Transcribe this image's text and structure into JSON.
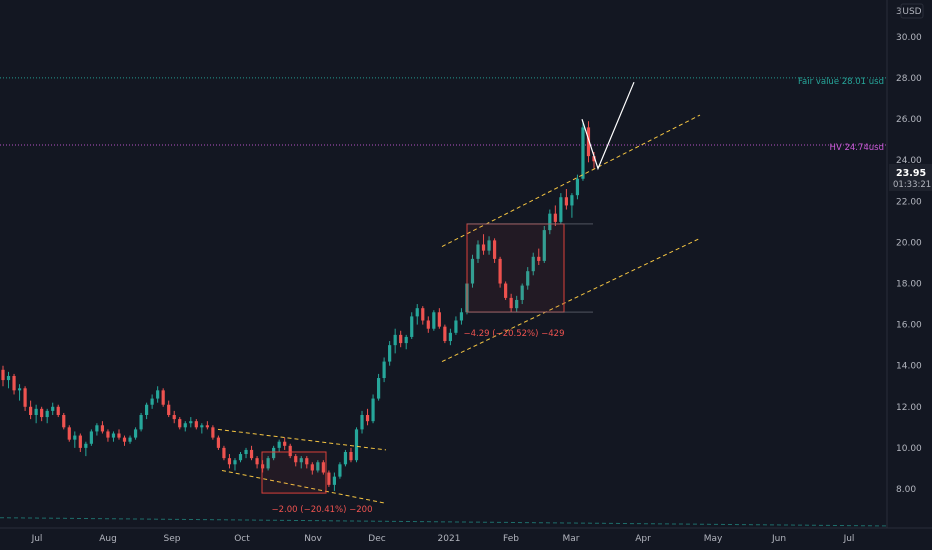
{
  "colors": {
    "background": "#131722",
    "up": "#26a69a",
    "down": "#ef5350",
    "axis_text": "#b2b5be",
    "fair_value": "#26a69a",
    "hv": "#c85ad6",
    "channel": "#f5c542",
    "box": "#d9403a",
    "projection": "#ffffff",
    "price_tag_bg": "#1e222d"
  },
  "axis": {
    "currency": "USD",
    "y_top_partial": "3",
    "y_ticks": [
      "30.00",
      "28.00",
      "26.00",
      "24.00",
      "22.00",
      "20.00",
      "18.00",
      "16.00",
      "14.00",
      "12.00",
      "10.00",
      "8.00"
    ],
    "x_ticks": [
      "Jul",
      "Aug",
      "Sep",
      "Oct",
      "Nov",
      "Dec",
      "2021",
      "Feb",
      "Mar",
      "Apr",
      "May",
      "Jun",
      "Jul"
    ]
  },
  "price_tag": {
    "price": "23.95",
    "countdown": "01:33:21"
  },
  "annotations": {
    "fair_value_label": "Fair value 28.01 usd",
    "hv_label": "HV 24.74usd",
    "box1_measure": "−2.00 (−20.41%) −200",
    "box2_measure": "−4.29 (−20.52%) −429"
  },
  "chart_data": {
    "type": "candlestick",
    "ylim": [
      6.1,
      31.8
    ],
    "x_categories": [
      "Jul",
      "Aug",
      "Sep",
      "Oct",
      "Nov",
      "Dec",
      "2021",
      "Feb",
      "Mar",
      "Apr",
      "May",
      "Jun",
      "Jul"
    ],
    "horizontal_levels": [
      {
        "label": "Fair value 28.01 usd",
        "value": 28.01
      },
      {
        "label": "HV 24.74usd",
        "value": 24.74
      }
    ],
    "last_price": 23.95,
    "ohlc": [
      [
        13.8,
        14.0,
        13.0,
        13.3
      ],
      [
        13.3,
        13.7,
        12.9,
        13.5
      ],
      [
        13.5,
        13.6,
        12.6,
        12.8
      ],
      [
        12.8,
        13.1,
        12.3,
        12.9
      ],
      [
        12.9,
        13.0,
        11.8,
        12.0
      ],
      [
        12.0,
        12.3,
        11.4,
        11.6
      ],
      [
        11.6,
        12.1,
        11.2,
        11.9
      ],
      [
        11.9,
        12.0,
        11.3,
        11.5
      ],
      [
        11.5,
        11.9,
        11.2,
        11.8
      ],
      [
        11.8,
        12.2,
        11.6,
        12.0
      ],
      [
        12.0,
        12.1,
        11.5,
        11.6
      ],
      [
        11.6,
        11.7,
        10.9,
        11.0
      ],
      [
        11.0,
        11.1,
        10.3,
        10.4
      ],
      [
        10.4,
        10.8,
        10.0,
        10.6
      ],
      [
        10.6,
        10.7,
        9.8,
        10.0
      ],
      [
        10.0,
        10.3,
        9.6,
        10.2
      ],
      [
        10.2,
        10.9,
        10.1,
        10.8
      ],
      [
        10.8,
        11.2,
        10.6,
        11.1
      ],
      [
        11.1,
        11.3,
        10.7,
        10.8
      ],
      [
        10.8,
        10.9,
        10.3,
        10.5
      ],
      [
        10.5,
        10.8,
        10.3,
        10.7
      ],
      [
        10.7,
        10.9,
        10.4,
        10.5
      ],
      [
        10.5,
        10.6,
        10.1,
        10.3
      ],
      [
        10.3,
        10.6,
        10.2,
        10.5
      ],
      [
        10.5,
        11.0,
        10.4,
        10.9
      ],
      [
        10.9,
        11.7,
        10.8,
        11.6
      ],
      [
        11.6,
        12.2,
        11.4,
        12.1
      ],
      [
        12.1,
        12.6,
        11.9,
        12.4
      ],
      [
        12.4,
        13.0,
        12.2,
        12.8
      ],
      [
        12.8,
        12.9,
        12.0,
        12.1
      ],
      [
        12.1,
        12.3,
        11.5,
        11.6
      ],
      [
        11.6,
        11.8,
        11.2,
        11.4
      ],
      [
        11.4,
        11.5,
        10.9,
        11.0
      ],
      [
        11.0,
        11.3,
        10.8,
        11.2
      ],
      [
        11.2,
        11.5,
        11.0,
        11.3
      ],
      [
        11.3,
        11.4,
        10.9,
        11.0
      ],
      [
        11.0,
        11.2,
        10.7,
        11.1
      ],
      [
        11.1,
        11.3,
        10.9,
        11.0
      ],
      [
        11.0,
        11.1,
        10.4,
        10.5
      ],
      [
        10.5,
        10.6,
        9.9,
        10.0
      ],
      [
        10.0,
        10.1,
        9.4,
        9.5
      ],
      [
        9.5,
        9.7,
        9.0,
        9.2
      ],
      [
        9.2,
        9.5,
        8.9,
        9.4
      ],
      [
        9.4,
        9.8,
        9.3,
        9.7
      ],
      [
        9.7,
        10.0,
        9.5,
        9.9
      ],
      [
        9.9,
        10.1,
        9.4,
        9.5
      ],
      [
        9.5,
        9.6,
        9.0,
        9.2
      ],
      [
        9.2,
        9.4,
        8.8,
        9.0
      ],
      [
        9.0,
        9.6,
        8.9,
        9.5
      ],
      [
        9.5,
        10.1,
        9.4,
        10.0
      ],
      [
        10.0,
        10.4,
        9.8,
        10.3
      ],
      [
        10.3,
        10.5,
        9.9,
        10.1
      ],
      [
        10.1,
        10.2,
        9.5,
        9.6
      ],
      [
        9.6,
        9.7,
        9.1,
        9.3
      ],
      [
        9.3,
        9.6,
        9.0,
        9.5
      ],
      [
        9.5,
        9.6,
        9.0,
        9.2
      ],
      [
        9.2,
        9.3,
        8.7,
        8.9
      ],
      [
        8.9,
        9.4,
        8.8,
        9.3
      ],
      [
        9.3,
        9.4,
        8.7,
        8.8
      ],
      [
        8.8,
        8.9,
        8.1,
        8.2
      ],
      [
        8.2,
        8.8,
        7.9,
        8.6
      ],
      [
        8.6,
        9.3,
        8.5,
        9.2
      ],
      [
        9.2,
        9.9,
        9.1,
        9.8
      ],
      [
        9.8,
        10.0,
        9.3,
        9.4
      ],
      [
        9.4,
        11.0,
        9.3,
        10.9
      ],
      [
        10.9,
        11.8,
        10.7,
        11.6
      ],
      [
        11.6,
        11.9,
        11.1,
        11.3
      ],
      [
        11.3,
        12.6,
        11.2,
        12.4
      ],
      [
        12.4,
        13.6,
        12.3,
        13.4
      ],
      [
        13.4,
        14.4,
        13.2,
        14.2
      ],
      [
        14.2,
        15.2,
        14.0,
        15.0
      ],
      [
        15.0,
        15.8,
        14.6,
        15.5
      ],
      [
        15.5,
        15.7,
        14.9,
        15.1
      ],
      [
        15.1,
        15.5,
        14.8,
        15.4
      ],
      [
        15.4,
        16.6,
        15.3,
        16.4
      ],
      [
        16.4,
        17.0,
        16.0,
        16.8
      ],
      [
        16.8,
        16.9,
        16.0,
        16.2
      ],
      [
        16.2,
        16.4,
        15.6,
        15.8
      ],
      [
        15.8,
        16.7,
        15.7,
        16.6
      ],
      [
        16.6,
        16.8,
        15.8,
        15.9
      ],
      [
        15.9,
        16.0,
        15.1,
        15.2
      ],
      [
        15.2,
        15.8,
        15.0,
        15.6
      ],
      [
        15.6,
        16.4,
        15.5,
        16.2
      ],
      [
        16.2,
        16.8,
        16.0,
        16.6
      ],
      [
        16.6,
        18.2,
        16.5,
        18.0
      ],
      [
        18.0,
        19.4,
        17.8,
        19.2
      ],
      [
        19.2,
        20.1,
        19.0,
        19.9
      ],
      [
        19.9,
        20.4,
        19.4,
        19.6
      ],
      [
        19.6,
        20.3,
        19.4,
        20.1
      ],
      [
        20.1,
        20.2,
        19.0,
        19.2
      ],
      [
        19.2,
        19.3,
        17.8,
        18.0
      ],
      [
        18.0,
        18.1,
        17.2,
        17.3
      ],
      [
        17.3,
        17.5,
        16.6,
        16.8
      ],
      [
        16.8,
        17.4,
        16.6,
        17.2
      ],
      [
        17.2,
        18.0,
        17.0,
        17.9
      ],
      [
        17.9,
        18.8,
        17.7,
        18.6
      ],
      [
        18.6,
        19.5,
        18.4,
        19.3
      ],
      [
        19.3,
        19.7,
        18.9,
        19.1
      ],
      [
        19.1,
        20.8,
        19.0,
        20.6
      ],
      [
        20.6,
        21.6,
        20.4,
        21.4
      ],
      [
        21.4,
        21.8,
        20.8,
        21.0
      ],
      [
        21.0,
        22.4,
        20.9,
        22.2
      ],
      [
        22.2,
        22.6,
        21.6,
        21.8
      ],
      [
        21.8,
        22.4,
        21.2,
        22.3
      ],
      [
        22.3,
        23.3,
        22.1,
        23.1
      ],
      [
        23.1,
        25.9,
        23.0,
        25.6
      ],
      [
        25.6,
        25.9,
        23.9,
        24.2
      ],
      [
        24.2,
        24.4,
        23.6,
        23.95
      ]
    ],
    "price_channels": [
      {
        "name": "descending_upper",
        "from": [
          218,
          10.9
        ],
        "to": [
          386,
          9.9
        ]
      },
      {
        "name": "descending_lower",
        "from": [
          222,
          8.9
        ],
        "to": [
          386,
          7.3
        ]
      },
      {
        "name": "ascending_upper",
        "from": [
          442,
          19.8
        ],
        "to": [
          700,
          26.2
        ]
      },
      {
        "name": "ascending_lower",
        "from": [
          442,
          14.2
        ],
        "to": [
          700,
          20.2
        ]
      }
    ],
    "measurements": [
      {
        "label": "−2.00 (−20.41%) −200",
        "from_price": 9.8,
        "to_price": 7.8
      },
      {
        "label": "−4.29 (−20.52%) −429",
        "from_price": 20.9,
        "to_price": 16.61
      }
    ],
    "projection": [
      [
        582,
        26.0
      ],
      [
        598,
        23.6
      ],
      [
        634,
        27.8
      ]
    ]
  }
}
